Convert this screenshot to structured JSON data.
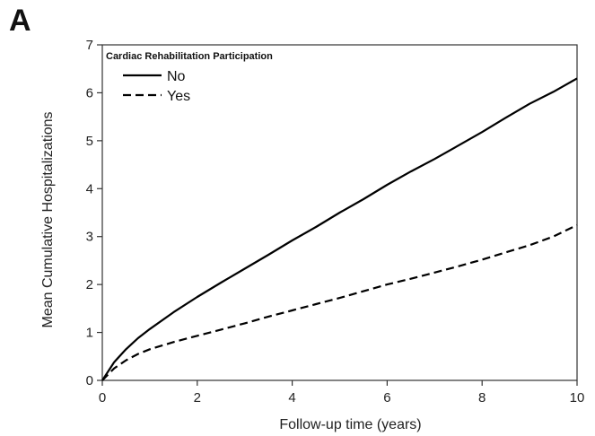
{
  "panel_label": "A",
  "chart_data": {
    "type": "line",
    "title": "",
    "xlabel": "Follow-up time (years)",
    "ylabel": "Mean Cumulative Hospitalizations",
    "xlim": [
      0,
      10
    ],
    "ylim": [
      0,
      7
    ],
    "xticks": [
      0,
      2,
      4,
      6,
      8,
      10
    ],
    "yticks": [
      0,
      1,
      2,
      3,
      4,
      5,
      6,
      7
    ],
    "grid": false,
    "legend": {
      "title": "Cardiac Rehabilitation Participation",
      "placement": "top-left"
    },
    "series": [
      {
        "name": "No",
        "style": "solid",
        "color": "#000000",
        "x": [
          0,
          0.25,
          0.5,
          0.75,
          1,
          1.5,
          2,
          2.5,
          3,
          3.5,
          4,
          4.5,
          5,
          5.5,
          6,
          6.5,
          7,
          7.5,
          8,
          8.5,
          9,
          9.5,
          10
        ],
        "y": [
          0,
          0.38,
          0.65,
          0.88,
          1.07,
          1.42,
          1.74,
          2.04,
          2.33,
          2.62,
          2.92,
          3.2,
          3.5,
          3.78,
          4.08,
          4.36,
          4.62,
          4.9,
          5.18,
          5.48,
          5.77,
          6.02,
          6.3
        ]
      },
      {
        "name": "Yes",
        "style": "dashed",
        "color": "#000000",
        "x": [
          0,
          0.25,
          0.5,
          0.75,
          1,
          1.5,
          2,
          2.5,
          3,
          3.5,
          4,
          4.5,
          5,
          5.5,
          6,
          6.5,
          7,
          7.5,
          8,
          8.5,
          9,
          9.5,
          10
        ],
        "y": [
          0,
          0.25,
          0.42,
          0.55,
          0.65,
          0.8,
          0.93,
          1.06,
          1.19,
          1.33,
          1.46,
          1.59,
          1.72,
          1.86,
          2.0,
          2.12,
          2.25,
          2.38,
          2.52,
          2.67,
          2.82,
          3.0,
          3.24
        ]
      }
    ]
  }
}
